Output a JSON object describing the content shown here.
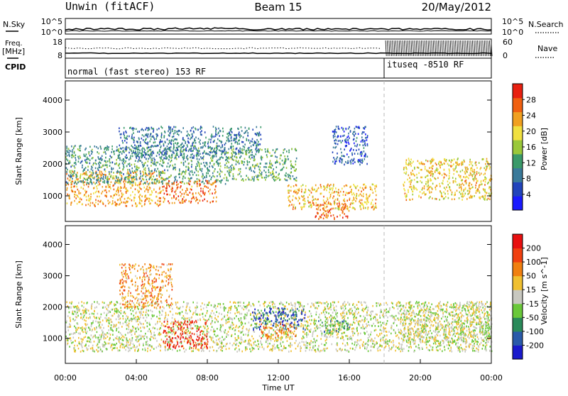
{
  "header": {
    "station": "Unwin (fitACF)",
    "beam": "Beam 15",
    "date": "20/May/2012"
  },
  "noise_panel": {
    "left_label": "N.Sky",
    "right_label": "N.Search",
    "top_tick": "10^5",
    "bottom_tick": "10^0"
  },
  "freq_panel": {
    "left_label_1": "Freq.",
    "left_label_2": "[MHz]",
    "left_tick_top": "18",
    "left_tick_bottom": "8",
    "right_tick_top": "60",
    "right_tick_bottom": "0",
    "right_label": "Nave"
  },
  "cpid_panel": {
    "label": "CPID",
    "mode_1": "normal (fast stereo) 153 RF",
    "mode_2": "ituseq -8510 RF"
  },
  "time_axis": {
    "label": "Time UT",
    "ticks": [
      "00:00",
      "04:00",
      "08:00",
      "12:00",
      "16:00",
      "20:00",
      "00:00"
    ]
  },
  "chart_data": [
    {
      "type": "heatmap",
      "title": "Power",
      "ylabel": "Slant Range [km]",
      "xlabel": "Time UT",
      "ylim": [
        200,
        4600
      ],
      "xlim": [
        0,
        24
      ],
      "y_ticks": [
        "1000",
        "2000",
        "3000",
        "4000"
      ],
      "colorbar": {
        "label": "Power [dB]",
        "ticks": [
          "4",
          "8",
          "12",
          "16",
          "20",
          "24",
          "28"
        ],
        "colors": [
          "#1a1aff",
          "#2244bb",
          "#3a7a9a",
          "#3a9a6a",
          "#9ac83a",
          "#f0e040",
          "#f0a020",
          "#f06010",
          "#e82010"
        ]
      },
      "regions": [
        {
          "t_start": 0.0,
          "t_end": 5.5,
          "r_low": 700,
          "r_high": 1800,
          "level": 0.75
        },
        {
          "t_start": 0.0,
          "t_end": 9.0,
          "r_low": 1400,
          "r_high": 2600,
          "level": 0.35
        },
        {
          "t_start": 5.5,
          "t_end": 8.5,
          "r_low": 800,
          "r_high": 1500,
          "level": 0.85
        },
        {
          "t_start": 3.0,
          "t_end": 11.0,
          "r_low": 2200,
          "r_high": 3200,
          "level": 0.25
        },
        {
          "t_start": 9.0,
          "t_end": 13.0,
          "r_low": 1500,
          "r_high": 2500,
          "level": 0.4
        },
        {
          "t_start": 12.5,
          "t_end": 17.5,
          "r_low": 600,
          "r_high": 1400,
          "level": 0.7
        },
        {
          "t_start": 14.0,
          "t_end": 16.0,
          "r_low": 300,
          "r_high": 800,
          "level": 0.9
        },
        {
          "t_start": 15.0,
          "t_end": 17.0,
          "r_low": 2000,
          "r_high": 3200,
          "level": 0.15
        },
        {
          "t_start": 19.0,
          "t_end": 24.0,
          "r_low": 900,
          "r_high": 2200,
          "level": 0.65
        }
      ]
    },
    {
      "type": "heatmap",
      "title": "Velocity",
      "ylabel": "Slant Range [km]",
      "xlabel": "Time UT",
      "ylim": [
        200,
        4600
      ],
      "xlim": [
        0,
        24
      ],
      "y_ticks": [
        "1000",
        "2000",
        "3000",
        "4000"
      ],
      "colorbar": {
        "label": "Velocity [m s^-1]",
        "ticks": [
          "200",
          "100",
          "50",
          "15",
          "-15",
          "-50",
          "-100",
          "-200"
        ],
        "colors": [
          "#1a1acc",
          "#2a5aaa",
          "#2a8a5a",
          "#6ac83a",
          "#c8c8c0",
          "#f0c030",
          "#f08010",
          "#f04010",
          "#e81010"
        ]
      },
      "regions": [
        {
          "t_start": 0.0,
          "t_end": 24.0,
          "r_low": 600,
          "r_high": 2200,
          "level": 0.5
        },
        {
          "t_start": 5.5,
          "t_end": 8.0,
          "r_low": 700,
          "r_high": 1600,
          "level": 0.95
        },
        {
          "t_start": 3.0,
          "t_end": 6.0,
          "r_low": 2000,
          "r_high": 3400,
          "level": 0.7
        },
        {
          "t_start": 10.5,
          "t_end": 13.5,
          "r_low": 1300,
          "r_high": 2000,
          "level": 0.1
        },
        {
          "t_start": 11.0,
          "t_end": 13.0,
          "r_low": 1000,
          "r_high": 1500,
          "level": 0.75
        },
        {
          "t_start": 14.0,
          "t_end": 16.0,
          "r_low": 1200,
          "r_high": 1600,
          "level": 0.3
        },
        {
          "t_start": 19.0,
          "t_end": 24.0,
          "r_low": 900,
          "r_high": 2200,
          "level": 0.5
        }
      ]
    }
  ]
}
